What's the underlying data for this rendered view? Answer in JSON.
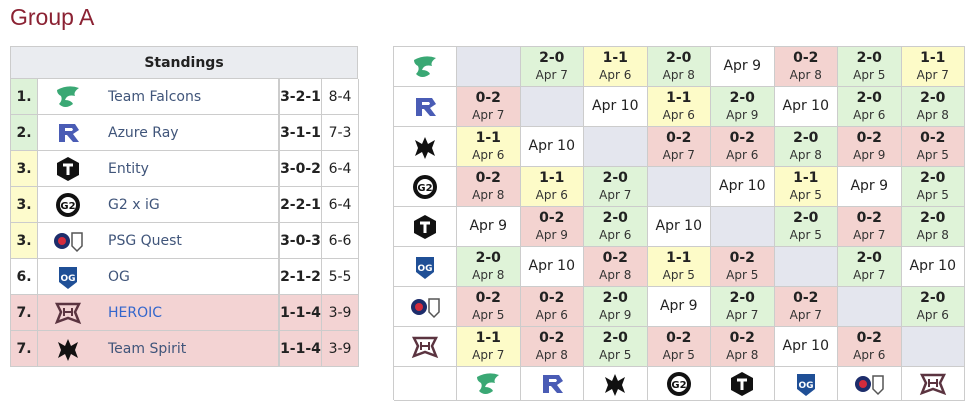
{
  "header": {
    "title": "Group A"
  },
  "standings": {
    "title": "Standings",
    "rows": [
      {
        "rank": "1.",
        "team": "Team Falcons",
        "record": "3-2-1",
        "maps": "8-4"
      },
      {
        "rank": "2.",
        "team": "Azure Ray",
        "record": "3-1-1",
        "maps": "7-3"
      },
      {
        "rank": "3.",
        "team": "Entity",
        "record": "3-0-2",
        "maps": "6-4"
      },
      {
        "rank": "3.",
        "team": "G2 x iG",
        "record": "2-2-1",
        "maps": "6-4"
      },
      {
        "rank": "3.",
        "team": "PSG Quest",
        "record": "3-0-3",
        "maps": "6-6"
      },
      {
        "rank": "6.",
        "team": "OG",
        "record": "2-1-2",
        "maps": "5-5"
      },
      {
        "rank": "7.",
        "team": "HEROIC",
        "record": "1-1-4",
        "maps": "3-9"
      },
      {
        "rank": "7.",
        "team": "Team Spirit",
        "record": "1-1-4",
        "maps": "3-9"
      }
    ]
  },
  "matrix": {
    "rows": [
      [
        null,
        {
          "score": "2-0",
          "date": "Apr 7"
        },
        {
          "score": "1-1",
          "date": "Apr 6"
        },
        {
          "score": "2-0",
          "date": "Apr 8"
        },
        {
          "date": "Apr 9"
        },
        {
          "score": "0-2",
          "date": "Apr 8"
        },
        {
          "score": "2-0",
          "date": "Apr 5"
        },
        {
          "score": "1-1",
          "date": "Apr 7"
        }
      ],
      [
        {
          "score": "0-2",
          "date": "Apr 7"
        },
        null,
        {
          "date": "Apr 10"
        },
        {
          "score": "1-1",
          "date": "Apr 6"
        },
        {
          "score": "2-0",
          "date": "Apr 9"
        },
        {
          "date": "Apr 10"
        },
        {
          "score": "2-0",
          "date": "Apr 6"
        },
        {
          "score": "2-0",
          "date": "Apr 8"
        }
      ],
      [
        {
          "score": "1-1",
          "date": "Apr 6"
        },
        {
          "date": "Apr 10"
        },
        null,
        {
          "score": "0-2",
          "date": "Apr 7"
        },
        {
          "score": "0-2",
          "date": "Apr 6"
        },
        {
          "score": "2-0",
          "date": "Apr 8"
        },
        {
          "score": "0-2",
          "date": "Apr 9"
        },
        {
          "score": "0-2",
          "date": "Apr 5"
        }
      ],
      [
        {
          "score": "0-2",
          "date": "Apr 8"
        },
        {
          "score": "1-1",
          "date": "Apr 6"
        },
        {
          "score": "2-0",
          "date": "Apr 7"
        },
        null,
        {
          "date": "Apr 10"
        },
        {
          "score": "1-1",
          "date": "Apr 5"
        },
        {
          "date": "Apr 9"
        },
        {
          "score": "2-0",
          "date": "Apr 5"
        }
      ],
      [
        {
          "date": "Apr 9"
        },
        {
          "score": "0-2",
          "date": "Apr 9"
        },
        {
          "score": "2-0",
          "date": "Apr 6"
        },
        {
          "date": "Apr 10"
        },
        null,
        {
          "score": "2-0",
          "date": "Apr 5"
        },
        {
          "score": "0-2",
          "date": "Apr 7"
        },
        {
          "score": "2-0",
          "date": "Apr 8"
        }
      ],
      [
        {
          "score": "2-0",
          "date": "Apr 8"
        },
        {
          "date": "Apr 10"
        },
        {
          "score": "0-2",
          "date": "Apr 8"
        },
        {
          "score": "1-1",
          "date": "Apr 5"
        },
        {
          "score": "0-2",
          "date": "Apr 5"
        },
        null,
        {
          "score": "2-0",
          "date": "Apr 7"
        },
        {
          "date": "Apr 10"
        }
      ],
      [
        {
          "score": "0-2",
          "date": "Apr 5"
        },
        {
          "score": "0-2",
          "date": "Apr 6"
        },
        {
          "score": "2-0",
          "date": "Apr 9"
        },
        {
          "date": "Apr 9"
        },
        {
          "score": "2-0",
          "date": "Apr 7"
        },
        {
          "score": "0-2",
          "date": "Apr 7"
        },
        null,
        {
          "score": "2-0",
          "date": "Apr 6"
        }
      ],
      [
        {
          "score": "1-1",
          "date": "Apr 7"
        },
        {
          "score": "0-2",
          "date": "Apr 8"
        },
        {
          "score": "2-0",
          "date": "Apr 5"
        },
        {
          "score": "0-2",
          "date": "Apr 5"
        },
        {
          "score": "0-2",
          "date": "Apr 8"
        },
        {
          "date": "Apr 10"
        },
        {
          "score": "0-2",
          "date": "Apr 6"
        },
        null
      ]
    ]
  }
}
